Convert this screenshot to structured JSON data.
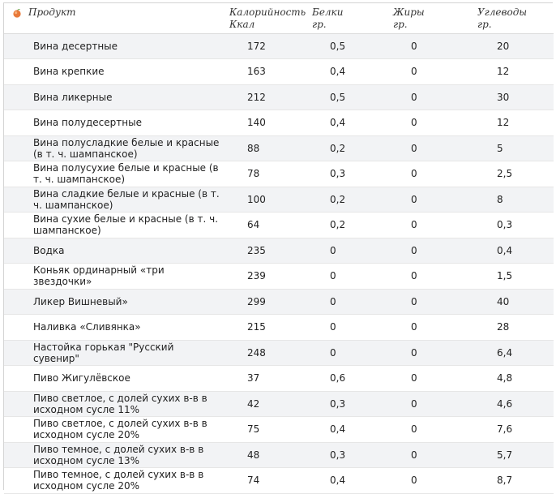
{
  "header": {
    "product": "Продукт",
    "kcal": [
      "Калорийность",
      "Ккал"
    ],
    "protein": [
      "Белки",
      "гр."
    ],
    "fat": [
      "Жиры",
      "гр."
    ],
    "carbs": [
      "Углеводы",
      "гр."
    ]
  },
  "rows": [
    {
      "product": "Вина десертные",
      "kcal": "172",
      "protein": "0,5",
      "fat": "0",
      "carbs": "20"
    },
    {
      "product": "Вина крепкие",
      "kcal": "163",
      "protein": "0,4",
      "fat": "0",
      "carbs": "12"
    },
    {
      "product": "Вина ликерные",
      "kcal": "212",
      "protein": "0,5",
      "fat": "0",
      "carbs": "30"
    },
    {
      "product": "Вина полудесертные",
      "kcal": "140",
      "protein": "0,4",
      "fat": "0",
      "carbs": "12"
    },
    {
      "product": "Вина полусладкие белые и красные (в т. ч. шампанское)",
      "kcal": "88",
      "protein": "0,2",
      "fat": "0",
      "carbs": "5"
    },
    {
      "product": "Вина полусухие белые и красные (в т. ч. шампанское)",
      "kcal": "78",
      "protein": "0,3",
      "fat": "0",
      "carbs": "2,5"
    },
    {
      "product": "Вина сладкие белые и красные (в т. ч. шампанское)",
      "kcal": "100",
      "protein": "0,2",
      "fat": "0",
      "carbs": "8"
    },
    {
      "product": "Вина сухие белые и красные (в т. ч. шампанское)",
      "kcal": "64",
      "protein": "0,2",
      "fat": "0",
      "carbs": "0,3"
    },
    {
      "product": "Водка",
      "kcal": "235",
      "protein": "0",
      "fat": "0",
      "carbs": "0,4"
    },
    {
      "product": "Коньяк ординарный «три звездочки»",
      "kcal": "239",
      "protein": "0",
      "fat": "0",
      "carbs": "1,5"
    },
    {
      "product": "Ликер Вишневый»",
      "kcal": "299",
      "protein": "0",
      "fat": "0",
      "carbs": "40"
    },
    {
      "product": "Наливка «Сливянка»",
      "kcal": "215",
      "protein": "0",
      "fat": "0",
      "carbs": "28"
    },
    {
      "product": "Настойка горькая \"Русский сувенир\"",
      "kcal": "248",
      "protein": "0",
      "fat": "0",
      "carbs": "6,4"
    },
    {
      "product": "Пиво Жигулёвское",
      "kcal": "37",
      "protein": "0,6",
      "fat": "0",
      "carbs": "4,8"
    },
    {
      "product": "Пиво светлое, с долей сухих в-в в исходном сусле 11%",
      "kcal": "42",
      "protein": "0,3",
      "fat": "0",
      "carbs": "4,6"
    },
    {
      "product": "Пиво светлое, с долей сухих в-в в исходном сусле 20%",
      "kcal": "75",
      "protein": "0,4",
      "fat": "0",
      "carbs": "7,6"
    },
    {
      "product": "Пиво темное, с долей сухих в-в в исходном сусле 13%",
      "kcal": "48",
      "protein": "0,3",
      "fat": "0",
      "carbs": "5,7"
    },
    {
      "product": "Пиво темное, с долей сухих в-в в исходном сусле 20%",
      "kcal": "74",
      "protein": "0,4",
      "fat": "0",
      "carbs": "8,7"
    }
  ]
}
